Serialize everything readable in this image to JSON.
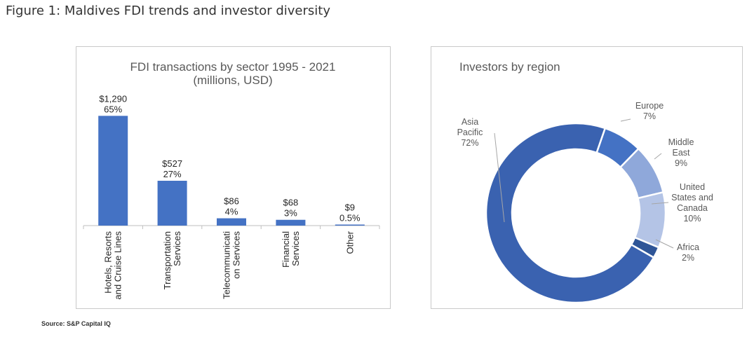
{
  "figure_title": "Figure 1: Maldives FDI trends and investor diversity",
  "source": "Source: S&P Capital IQ",
  "colors": {
    "bar": "#4472c4",
    "axis": "#bfbfbf",
    "donut": [
      "#4472c4",
      "#8fa8da",
      "#b4c4e6",
      "#2f5597",
      "#3a62b0"
    ]
  },
  "chart_data": [
    {
      "type": "bar",
      "title": "FDI transactions by sector 1995 - 2021",
      "subtitle": "(millions, USD)",
      "xlabel": "",
      "ylabel": "",
      "ylim": [
        0,
        1400
      ],
      "categories": [
        [
          "Hotels, Resorts",
          "and Cruise Lines"
        ],
        [
          "Transportation",
          "Services"
        ],
        [
          "Telecommunicati",
          "on Services"
        ],
        [
          "Financial",
          "Services"
        ],
        [
          "Other"
        ]
      ],
      "values": [
        1290,
        527,
        86,
        68,
        9
      ],
      "value_labels": [
        "$1,290",
        "$527",
        "$86",
        "$68",
        "$9"
      ],
      "pct_labels": [
        "65%",
        "27%",
        "4%",
        "3%",
        "0.5%"
      ]
    },
    {
      "type": "pie",
      "title": "Investors by region",
      "donut": true,
      "slices": [
        {
          "label": [
            "Europe"
          ],
          "pct_label": "7%",
          "value": 7
        },
        {
          "label": [
            "Middle",
            "East"
          ],
          "pct_label": "9%",
          "value": 9
        },
        {
          "label": [
            "United",
            "States and",
            "Canada"
          ],
          "pct_label": "10%",
          "value": 10
        },
        {
          "label": [
            "Africa"
          ],
          "pct_label": "2%",
          "value": 2
        },
        {
          "label": [
            "Asia",
            "Pacific"
          ],
          "pct_label": "72%",
          "value": 72
        }
      ]
    }
  ]
}
